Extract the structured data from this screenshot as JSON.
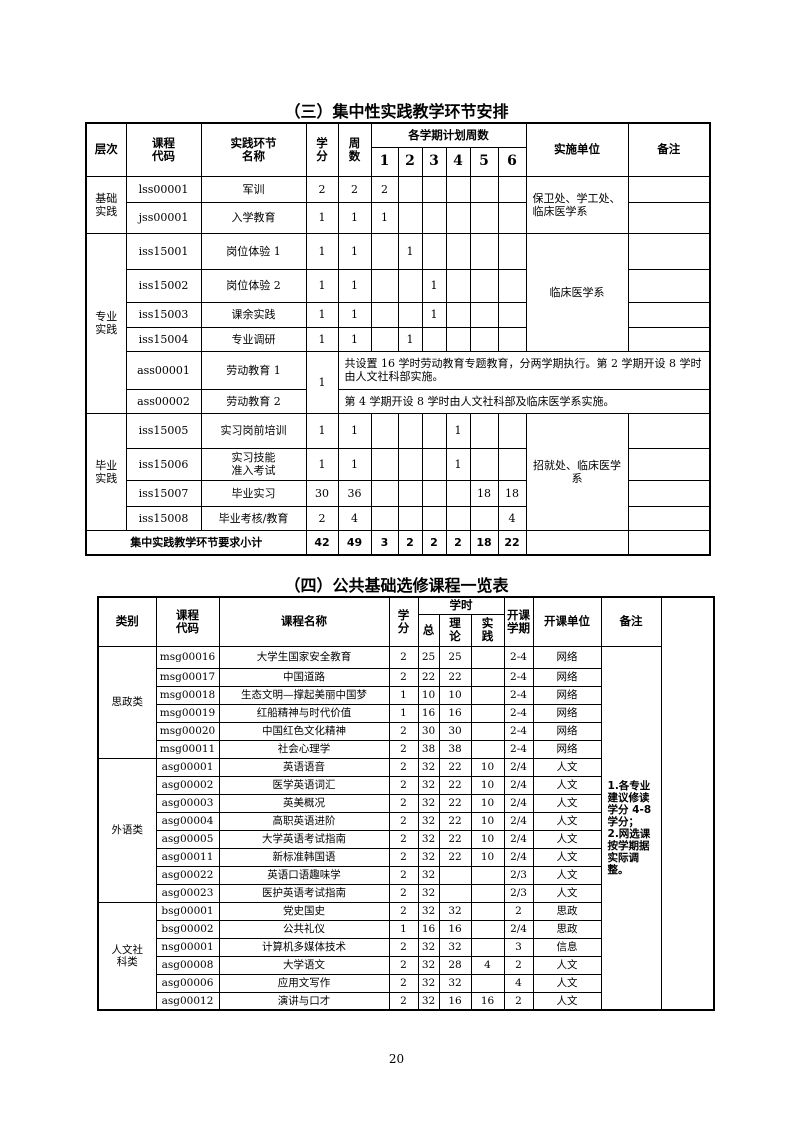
{
  "practice": {
    "title": "（三）集中性实践教学环节安排",
    "headers": {
      "level": "层次",
      "code": "课程\n代码",
      "name": "实践环节\n名称",
      "credit": "学\n分",
      "weeks": "周\n数",
      "semester_group": "各学期计划周数",
      "semesters": [
        "1",
        "2",
        "3",
        "4",
        "5",
        "6"
      ],
      "unit": "实施单位",
      "remark": "备注"
    },
    "groups": [
      {
        "level": "基础\n实践",
        "unit": "保卫处、学工处、临床医学系",
        "rows": [
          {
            "code": "lss00001",
            "name": "军训",
            "credit": "2",
            "weeks": "2",
            "sem": [
              "2",
              "",
              "",
              "",
              "",
              ""
            ]
          },
          {
            "code": "jss00001",
            "name": "入学教育",
            "credit": "1",
            "weeks": "1",
            "sem": [
              "1",
              "",
              "",
              "",
              "",
              ""
            ]
          }
        ]
      },
      {
        "level": "专业\n实践",
        "unit": "临床医学系",
        "rows": [
          {
            "code": "iss15001",
            "name": "岗位体验 1",
            "credit": "1",
            "weeks": "1",
            "sem": [
              "",
              "1",
              "",
              "",
              "",
              ""
            ]
          },
          {
            "code": "iss15002",
            "name": "岗位体验 2",
            "credit": "1",
            "weeks": "1",
            "sem": [
              "",
              "",
              "1",
              "",
              "",
              ""
            ]
          },
          {
            "code": "iss15003",
            "name": "课余实践",
            "credit": "1",
            "weeks": "1",
            "sem": [
              "",
              "",
              "1",
              "",
              "",
              ""
            ]
          },
          {
            "code": "iss15004",
            "name": "专业调研",
            "credit": "1",
            "weeks": "1",
            "sem": [
              "",
              "1",
              "",
              "",
              "",
              ""
            ]
          }
        ],
        "labor": {
          "credit": "1",
          "rows": [
            {
              "code": "ass00001",
              "name": "劳动教育 1",
              "note": "共设置 16 学时劳动教育专题教育，分两学期执行。第 2 学期开设 8 学时由人文社科部实施。"
            },
            {
              "code": "ass00002",
              "name": "劳动教育 2",
              "note": "第 4 学期开设 8 学时由人文社科部及临床医学系实施。"
            }
          ]
        }
      },
      {
        "level": "毕业\n实践",
        "unit": "招就处、临床医学系",
        "rows": [
          {
            "code": "iss15005",
            "name": "实习岗前培训",
            "credit": "1",
            "weeks": "1",
            "sem": [
              "",
              "",
              "",
              "1",
              "",
              ""
            ]
          },
          {
            "code": "iss15006",
            "name": "实习技能\n准入考试",
            "credit": "1",
            "weeks": "1",
            "sem": [
              "",
              "",
              "",
              "1",
              "",
              ""
            ]
          },
          {
            "code": "iss15007",
            "name": "毕业实习",
            "credit": "30",
            "weeks": "36",
            "sem": [
              "",
              "",
              "",
              "",
              "18",
              "18"
            ]
          },
          {
            "code": "iss15008",
            "name": "毕业考核/教育",
            "credit": "2",
            "weeks": "4",
            "sem": [
              "",
              "",
              "",
              "",
              "",
              "4"
            ]
          }
        ]
      }
    ],
    "total": {
      "label": "集中实践教学环节要求小计",
      "values": [
        "42",
        "49",
        "3",
        "2",
        "2",
        "2",
        "18",
        "22"
      ]
    }
  },
  "electives": {
    "title": "（四）公共基础选修课程一览表",
    "headers": {
      "category": "类别",
      "code": "课程\n代码",
      "name": "课程名称",
      "credit": "学\n分",
      "hours": "学时",
      "total": "总",
      "theory": "理\n论",
      "practice": "实\n践",
      "term": "开课学期",
      "unit": "开课单位",
      "remark": "备注"
    },
    "remark": "1.各专业\n建议修读\n学分 4-8\n学分；\n2.网选课\n按学期据\n实际调整。",
    "categories": [
      {
        "name": "思政类",
        "rows": [
          {
            "code": "msg00016",
            "name": "大学生国家安全教育",
            "credit": "2",
            "total": "25",
            "theory": "25",
            "practice": "",
            "term": "2-4",
            "unit": "网络"
          },
          {
            "code": "msg00017",
            "name": "中国道路",
            "credit": "2",
            "total": "22",
            "theory": "22",
            "practice": "",
            "term": "2-4",
            "unit": "网络"
          },
          {
            "code": "msg00018",
            "name": "生态文明—撑起美丽中国梦",
            "credit": "1",
            "total": "10",
            "theory": "10",
            "practice": "",
            "term": "2-4",
            "unit": "网络"
          },
          {
            "code": "msg00019",
            "name": "红船精神与时代价值",
            "credit": "1",
            "total": "16",
            "theory": "16",
            "practice": "",
            "term": "2-4",
            "unit": "网络"
          },
          {
            "code": "msg00020",
            "name": "中国红色文化精神",
            "credit": "2",
            "total": "30",
            "theory": "30",
            "practice": "",
            "term": "2-4",
            "unit": "网络"
          },
          {
            "code": "msg00011",
            "name": "社会心理学",
            "credit": "2",
            "total": "38",
            "theory": "38",
            "practice": "",
            "term": "2-4",
            "unit": "网络"
          }
        ]
      },
      {
        "name": "外语类",
        "rows": [
          {
            "code": "asg00001",
            "name": "英语语音",
            "credit": "2",
            "total": "32",
            "theory": "22",
            "practice": "10",
            "term": "2/4",
            "unit": "人文"
          },
          {
            "code": "asg00002",
            "name": "医学英语词汇",
            "credit": "2",
            "total": "32",
            "theory": "22",
            "practice": "10",
            "term": "2/4",
            "unit": "人文"
          },
          {
            "code": "asg00003",
            "name": "英美概况",
            "credit": "2",
            "total": "32",
            "theory": "22",
            "practice": "10",
            "term": "2/4",
            "unit": "人文"
          },
          {
            "code": "asg00004",
            "name": "高职英语进阶",
            "credit": "2",
            "total": "32",
            "theory": "22",
            "practice": "10",
            "term": "2/4",
            "unit": "人文"
          },
          {
            "code": "asg00005",
            "name": "大学英语考试指南",
            "credit": "2",
            "total": "32",
            "theory": "22",
            "practice": "10",
            "term": "2/4",
            "unit": "人文"
          },
          {
            "code": "asg00011",
            "name": "新标准韩国语",
            "credit": "2",
            "total": "32",
            "theory": "22",
            "practice": "10",
            "term": "2/4",
            "unit": "人文"
          },
          {
            "code": "asg00022",
            "name": "英语口语趣味学",
            "credit": "2",
            "total": "32",
            "theory": "",
            "practice": "",
            "term": "2/3",
            "unit": "人文"
          },
          {
            "code": "asg00023",
            "name": "医护英语考试指南",
            "credit": "2",
            "total": "32",
            "theory": "",
            "practice": "",
            "term": "2/3",
            "unit": "人文"
          }
        ]
      },
      {
        "name": "人文社\n科类",
        "rows": [
          {
            "code": "bsg00001",
            "name": "党史国史",
            "credit": "2",
            "total": "32",
            "theory": "32",
            "practice": "",
            "term": "2",
            "unit": "思政"
          },
          {
            "code": "bsg00002",
            "name": "公共礼仪",
            "credit": "1",
            "total": "16",
            "theory": "16",
            "practice": "",
            "term": "2/4",
            "unit": "思政"
          },
          {
            "code": "nsg00001",
            "name": "计算机多媒体技术",
            "credit": "2",
            "total": "32",
            "theory": "32",
            "practice": "",
            "term": "3",
            "unit": "信息"
          },
          {
            "code": "asg00008",
            "name": "大学语文",
            "credit": "2",
            "total": "32",
            "theory": "28",
            "practice": "4",
            "term": "2",
            "unit": "人文"
          },
          {
            "code": "asg00006",
            "name": "应用文写作",
            "credit": "2",
            "total": "32",
            "theory": "32",
            "practice": "",
            "term": "4",
            "unit": "人文"
          },
          {
            "code": "asg00012",
            "name": "演讲与口才",
            "credit": "2",
            "total": "32",
            "theory": "16",
            "practice": "16",
            "term": "2",
            "unit": "人文"
          }
        ]
      }
    ]
  },
  "page_number": "20"
}
